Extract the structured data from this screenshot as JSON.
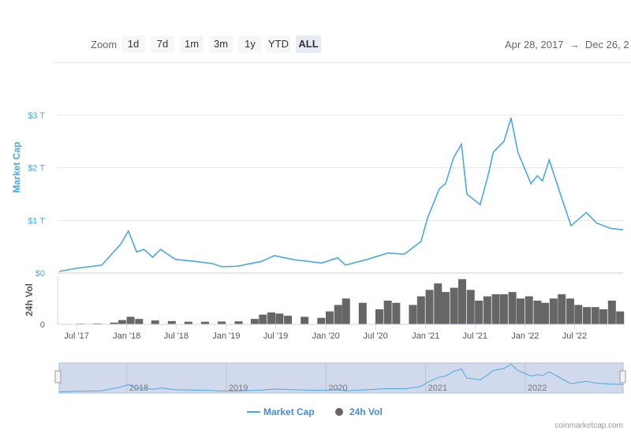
{
  "toolbar": {
    "zoom_label": "Zoom",
    "buttons": [
      "1d",
      "7d",
      "1m",
      "3m",
      "1y",
      "YTD",
      "ALL"
    ],
    "active": "ALL",
    "range_from": "Apr 28, 2017",
    "range_arrow": "→",
    "range_to": "Dec 26, 2"
  },
  "colors": {
    "market_cap": "#4aa8e0",
    "volume": "#666666",
    "axis_label": "#4aa8e0",
    "navigator_mask": "#ccd6eb"
  },
  "credit": "coinmarketcap.com",
  "chart_data": {
    "type": "line",
    "x_unit": "date",
    "xlim": [
      "2017-04-28",
      "2022-12-26"
    ],
    "x_tick_labels": [
      "Jul '17",
      "Jan '18",
      "Jul '18",
      "Jan '19",
      "Jul '19",
      "Jan '20",
      "Jul '20",
      "Jan '21",
      "Jul '21",
      "Jan '22",
      "Jul '22"
    ],
    "x_ticks": [
      "2017-07-01",
      "2018-01-01",
      "2018-07-01",
      "2019-01-01",
      "2019-07-01",
      "2020-01-01",
      "2020-07-01",
      "2021-01-01",
      "2021-07-01",
      "2022-01-01",
      "2022-07-01"
    ],
    "market_cap_axis": {
      "label": "Market Cap",
      "ticks": [
        "$0",
        "$1 T",
        "$2 T",
        "$3 T"
      ],
      "tick_values": [
        0,
        1,
        2,
        3
      ],
      "ylim": [
        0,
        3
      ],
      "unit": "trillion USD",
      "grid": true
    },
    "volume_axis": {
      "label": "24h Vol",
      "ticks": [
        "0"
      ],
      "tick_values": [
        0
      ]
    },
    "legend": {
      "position": "bottom",
      "items": [
        "Market Cap",
        "24h Vol"
      ]
    },
    "navigator_labels": [
      "2018",
      "2019",
      "2020",
      "2021",
      "2022"
    ],
    "series": [
      {
        "name": "Market Cap",
        "type": "line",
        "x": [
          "2017-04-28",
          "2017-07-01",
          "2017-10-01",
          "2017-12-10",
          "2018-01-07",
          "2018-02-06",
          "2018-03-05",
          "2018-04-06",
          "2018-05-05",
          "2018-06-28",
          "2018-09-10",
          "2018-11-10",
          "2018-12-15",
          "2019-02-10",
          "2019-05-10",
          "2019-06-26",
          "2019-09-10",
          "2019-12-17",
          "2020-02-13",
          "2020-03-13",
          "2020-06-01",
          "2020-08-15",
          "2020-10-15",
          "2020-12-15",
          "2021-01-08",
          "2021-02-20",
          "2021-03-15",
          "2021-04-14",
          "2021-05-12",
          "2021-06-01",
          "2021-07-20",
          "2021-08-20",
          "2021-09-06",
          "2021-10-15",
          "2021-11-10",
          "2021-12-05",
          "2022-01-22",
          "2022-02-15",
          "2022-03-05",
          "2022-03-30",
          "2022-05-10",
          "2022-06-18",
          "2022-08-13",
          "2022-09-20",
          "2022-11-09",
          "2022-12-26"
        ],
        "values": [
          0.03,
          0.09,
          0.15,
          0.55,
          0.8,
          0.4,
          0.45,
          0.3,
          0.45,
          0.26,
          0.22,
          0.18,
          0.12,
          0.13,
          0.22,
          0.33,
          0.25,
          0.19,
          0.29,
          0.15,
          0.26,
          0.38,
          0.36,
          0.6,
          1.05,
          1.6,
          1.7,
          2.2,
          2.45,
          1.5,
          1.3,
          1.9,
          2.3,
          2.5,
          2.95,
          2.3,
          1.7,
          1.85,
          1.75,
          2.15,
          1.5,
          0.9,
          1.15,
          0.95,
          0.85,
          0.82
        ]
      },
      {
        "name": "24h Vol",
        "type": "column",
        "x": [
          "2017-05",
          "2017-07",
          "2017-09",
          "2017-11",
          "2017-12",
          "2018-01",
          "2018-02",
          "2018-04",
          "2018-06",
          "2018-08",
          "2018-10",
          "2018-12",
          "2019-02",
          "2019-04",
          "2019-05",
          "2019-06",
          "2019-07",
          "2019-08",
          "2019-10",
          "2019-12",
          "2020-01",
          "2020-02",
          "2020-03",
          "2020-05",
          "2020-07",
          "2020-08",
          "2020-09",
          "2020-11",
          "2020-12",
          "2021-01",
          "2021-02",
          "2021-03",
          "2021-04",
          "2021-05",
          "2021-06",
          "2021-07",
          "2021-08",
          "2021-09",
          "2021-10",
          "2021-11",
          "2021-12",
          "2022-01",
          "2022-02",
          "2022-03",
          "2022-04",
          "2022-05",
          "2022-06",
          "2022-07",
          "2022-08",
          "2022-09",
          "2022-10",
          "2022-11",
          "2022-12"
        ],
        "values": [
          2,
          3,
          4,
          8,
          20,
          35,
          25,
          18,
          15,
          12,
          12,
          13,
          14,
          25,
          45,
          55,
          50,
          40,
          35,
          30,
          60,
          90,
          120,
          100,
          70,
          110,
          100,
          90,
          130,
          160,
          190,
          150,
          170,
          210,
          160,
          110,
          130,
          140,
          140,
          150,
          120,
          130,
          110,
          100,
          120,
          140,
          120,
          90,
          80,
          80,
          70,
          110,
          60
        ]
      }
    ]
  }
}
